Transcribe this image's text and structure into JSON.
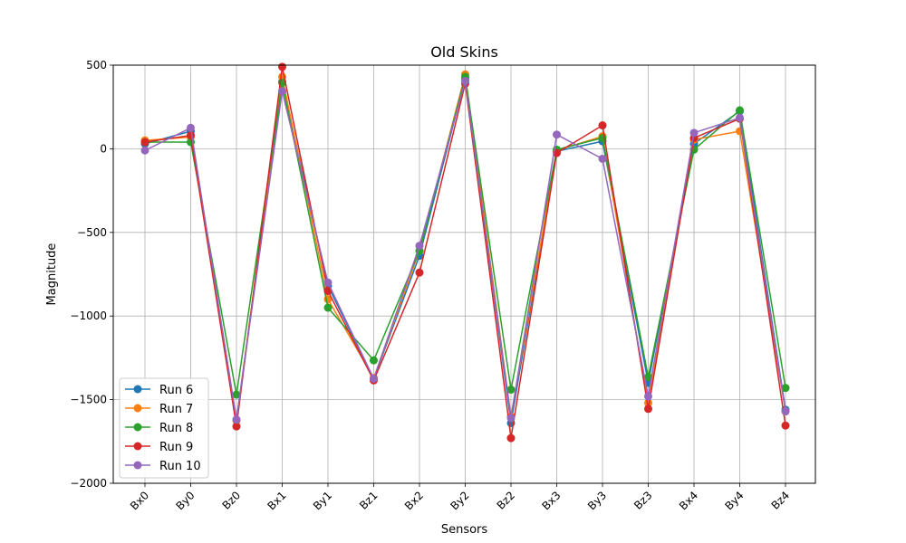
{
  "chart_data": {
    "type": "line",
    "title": "Old Skins",
    "xlabel": "Sensors",
    "ylabel": "Magnitude",
    "categories": [
      "Bx0",
      "By0",
      "Bz0",
      "Bx1",
      "By1",
      "Bz1",
      "Bx2",
      "By2",
      "Bz2",
      "Bx3",
      "By3",
      "Bz3",
      "Bx4",
      "By4",
      "Bz4"
    ],
    "ylim": [
      -2000,
      500
    ],
    "yticks": [
      500,
      0,
      -500,
      -1000,
      -1500,
      -2000
    ],
    "ytick_labels": [
      "500",
      "0",
      "−500",
      "−1000",
      "−1500",
      "−2000"
    ],
    "grid": true,
    "legend_position": "lower-left",
    "series": [
      {
        "name": "Run 6",
        "color": "#1f77b4",
        "values": [
          30,
          105,
          -1620,
          400,
          -820,
          -1375,
          -640,
          420,
          -1640,
          -15,
          45,
          -1400,
          30,
          225,
          -1560
        ]
      },
      {
        "name": "Run 7",
        "color": "#ff7f0e",
        "values": [
          50,
          70,
          -1625,
          430,
          -900,
          -1370,
          -610,
          445,
          -1600,
          -10,
          75,
          -1520,
          55,
          105,
          -1570
        ]
      },
      {
        "name": "Run 8",
        "color": "#2ca02c",
        "values": [
          40,
          40,
          -1470,
          395,
          -950,
          -1265,
          -610,
          430,
          -1440,
          -5,
          65,
          -1365,
          -5,
          230,
          -1430
        ]
      },
      {
        "name": "Run 9",
        "color": "#d62728",
        "values": [
          40,
          80,
          -1660,
          490,
          -850,
          -1385,
          -740,
          390,
          -1730,
          -25,
          140,
          -1555,
          65,
          180,
          -1655
        ]
      },
      {
        "name": "Run 10",
        "color": "#9467bd",
        "values": [
          -10,
          125,
          -1620,
          345,
          -800,
          -1375,
          -580,
          405,
          -1610,
          85,
          -60,
          -1480,
          95,
          185,
          -1570
        ]
      }
    ]
  }
}
